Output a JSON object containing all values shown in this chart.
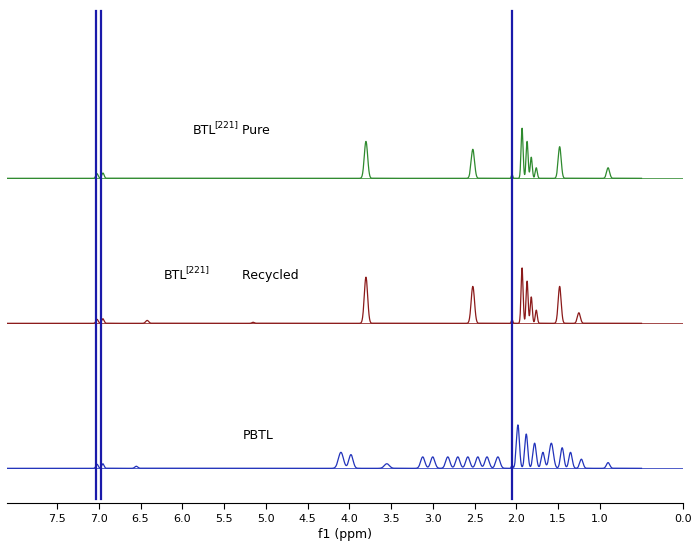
{
  "xlabel": "f1 (ppm)",
  "xlim_left": 8.1,
  "xlim_right": 0.65,
  "xticks": [
    0,
    1.0,
    1.5,
    2.0,
    2.5,
    3.0,
    3.5,
    4.0,
    4.5,
    5.0,
    5.5,
    6.0,
    6.5,
    7.0,
    7.5
  ],
  "bg_color": "#ffffff",
  "green_color": "#2e8a2e",
  "red_color": "#8b1a1a",
  "blue_color": "#2233bb",
  "spike_color": "#1a1aaa",
  "figsize": [
    6.99,
    5.48
  ],
  "dpi": 100,
  "baseline_green": 0.66,
  "baseline_red": 0.33,
  "baseline_blue": 0.0,
  "ylim": [
    -0.08,
    1.05
  ]
}
